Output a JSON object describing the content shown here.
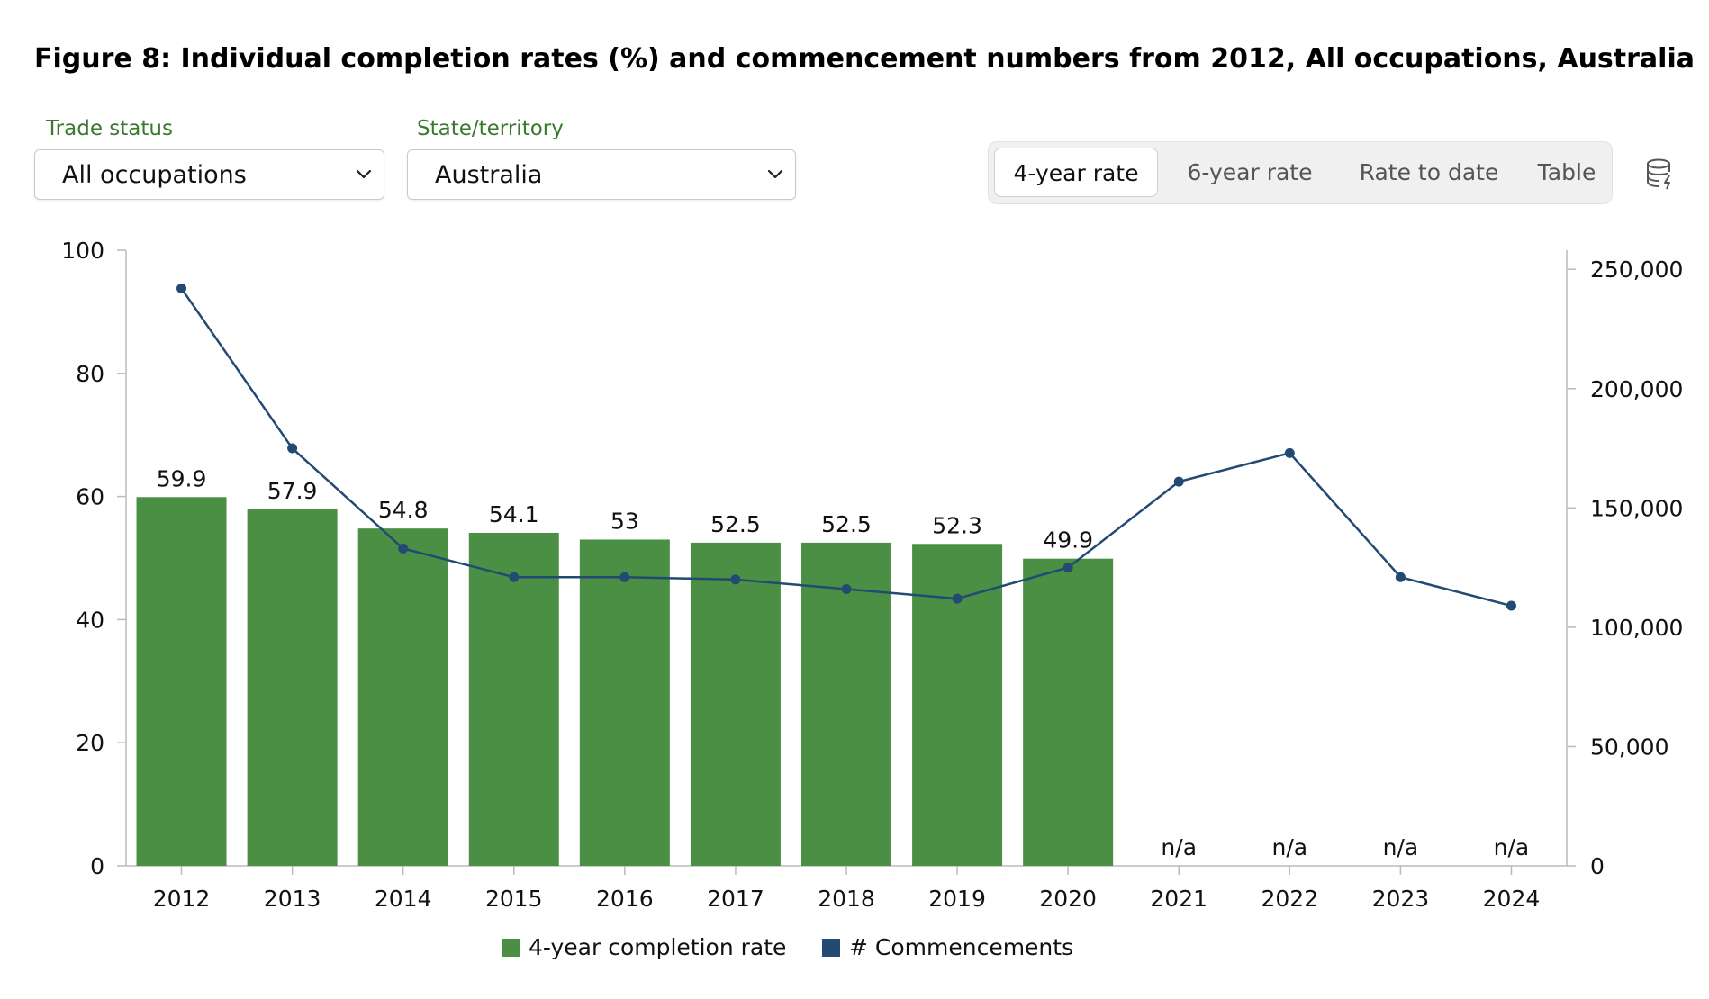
{
  "title": "Figure 8: Individual completion rates (%) and commencement numbers from 2012, All occupations, Australia",
  "filters": {
    "trade_status": {
      "label": "Trade status",
      "value": "All occupations"
    },
    "state": {
      "label": "State/territory",
      "value": "Australia"
    }
  },
  "view_tabs": [
    {
      "label": "4-year rate",
      "active": true
    },
    {
      "label": "6-year rate",
      "active": false
    },
    {
      "label": "Rate to date",
      "active": false
    },
    {
      "label": "Table",
      "active": false
    }
  ],
  "icons": {
    "data_source": "database-icon",
    "dropdown": "chevron-down-icon"
  },
  "colors": {
    "bar": "#4a8f43",
    "line": "#234a73",
    "label_green": "#3a7a2e"
  },
  "chart_data": {
    "type": "bar",
    "categories": [
      "2012",
      "2013",
      "2014",
      "2015",
      "2016",
      "2017",
      "2018",
      "2019",
      "2020",
      "2021",
      "2022",
      "2023",
      "2024"
    ],
    "series": [
      {
        "name": "4-year completion rate",
        "type": "bar",
        "axis": "left",
        "values": [
          59.9,
          57.9,
          54.8,
          54.1,
          53,
          52.5,
          52.5,
          52.3,
          49.9,
          null,
          null,
          null,
          null
        ],
        "labels": [
          "59.9",
          "57.9",
          "54.8",
          "54.1",
          "53",
          "52.5",
          "52.5",
          "52.3",
          "49.9",
          "n/a",
          "n/a",
          "n/a",
          "n/a"
        ]
      },
      {
        "name": "# Commencements",
        "type": "line",
        "axis": "right",
        "values": [
          242000,
          175000,
          133000,
          121000,
          121000,
          120000,
          116000,
          112000,
          125000,
          161000,
          173000,
          121000,
          109000
        ]
      }
    ],
    "left_axis": {
      "range": [
        0,
        100
      ],
      "ticks": [
        "0",
        "20",
        "40",
        "60",
        "80",
        "100"
      ]
    },
    "right_axis": {
      "range": [
        0,
        258000
      ],
      "ticks": [
        "0",
        "50,000",
        "100,000",
        "150,000",
        "200,000",
        "250,000"
      ],
      "tick_values": [
        0,
        50000,
        100000,
        150000,
        200000,
        250000
      ]
    },
    "legend": "bottom-center",
    "grid": false
  }
}
